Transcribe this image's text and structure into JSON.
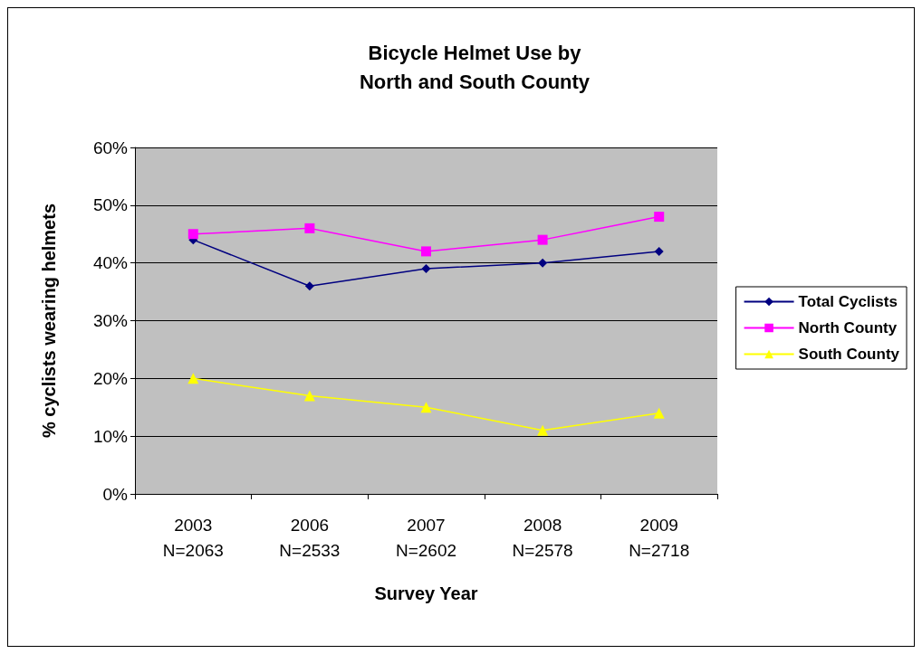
{
  "chart_data": {
    "type": "line",
    "title": "Bicycle Helmet Use by\nNorth and South County",
    "xlabel": "Survey Year",
    "ylabel": "% cyclists wearing helmets",
    "categories": [
      "2003\nN=2063",
      "2006\nN=2533",
      "2007\nN=2602",
      "2008\nN=2578",
      "2009\nN=2718"
    ],
    "series": [
      {
        "name": "Total Cyclists",
        "color": "#000080",
        "marker": "diamond",
        "values": [
          44,
          36,
          39,
          40,
          42
        ]
      },
      {
        "name": "North County",
        "color": "#ff00ff",
        "marker": "square",
        "values": [
          45,
          46,
          42,
          44,
          48
        ]
      },
      {
        "name": "South County",
        "color": "#ffff00",
        "marker": "triangle",
        "values": [
          20,
          17,
          15,
          11,
          14
        ]
      }
    ],
    "ylim": [
      0,
      60
    ],
    "yticks": [
      {
        "value": 0,
        "label": "0%"
      },
      {
        "value": 10,
        "label": "10%"
      },
      {
        "value": 20,
        "label": "20%"
      },
      {
        "value": 30,
        "label": "30%"
      },
      {
        "value": 40,
        "label": "40%"
      },
      {
        "value": 50,
        "label": "50%"
      },
      {
        "value": 60,
        "label": "60%"
      }
    ],
    "grid": "y",
    "legend": "right",
    "line_style": "solid"
  }
}
